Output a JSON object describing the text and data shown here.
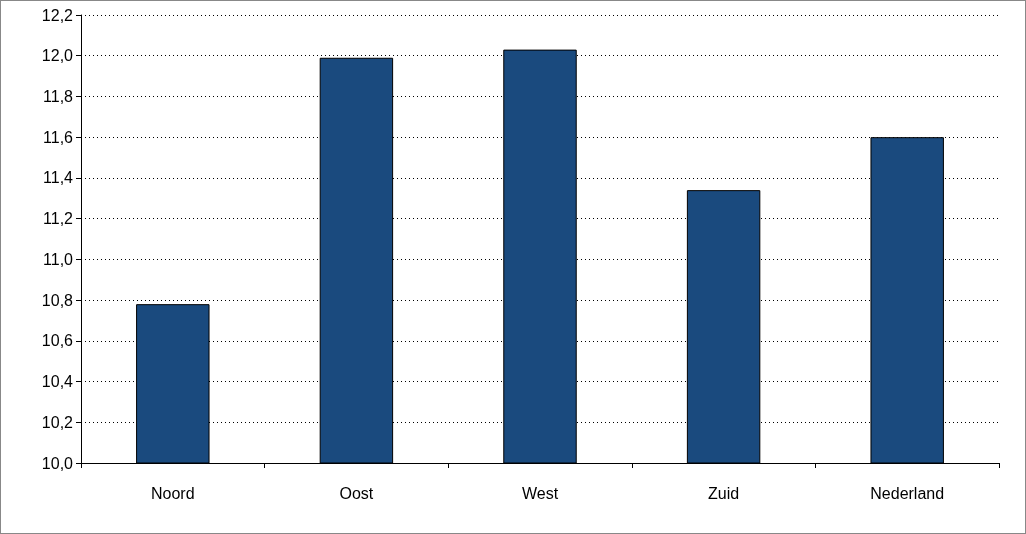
{
  "chart_data": {
    "type": "bar",
    "categories": [
      "Noord",
      "Oost",
      "West",
      "Zuid",
      "Nederland"
    ],
    "values": [
      10.78,
      11.99,
      12.03,
      11.34,
      11.6
    ],
    "color": "#1a4a7e",
    "ylim": [
      10,
      12.2
    ],
    "yticks": [
      {
        "value": 10,
        "label": "10,0"
      },
      {
        "value": 10.2,
        "label": "10,2"
      },
      {
        "value": 10.4,
        "label": "10,4"
      },
      {
        "value": 10.6,
        "label": "10,6"
      },
      {
        "value": 10.8,
        "label": "10,8"
      },
      {
        "value": 11,
        "label": "11,0"
      },
      {
        "value": 11.2,
        "label": "11,2"
      },
      {
        "value": 11.4,
        "label": "11,4"
      },
      {
        "value": 11.6,
        "label": "11,6"
      },
      {
        "value": 11.8,
        "label": "11,8"
      },
      {
        "value": 12,
        "label": "12,0"
      },
      {
        "value": 12.2,
        "label": "12,2"
      }
    ],
    "grid": "y"
  }
}
